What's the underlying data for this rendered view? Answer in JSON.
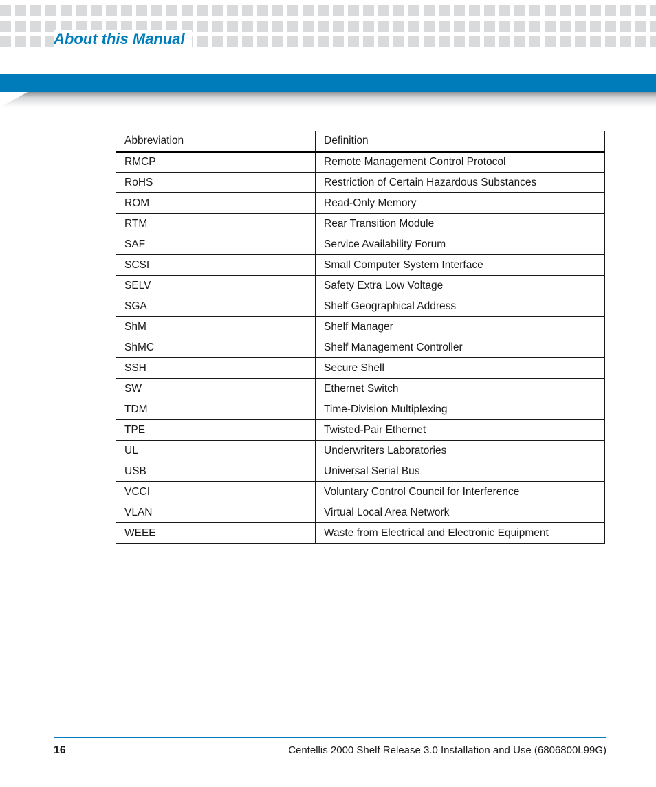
{
  "page": {
    "title": "About this Manual",
    "number": "16",
    "footer_text": "Centellis 2000 Shelf Release 3.0 Installation and Use (6806800L99G)"
  },
  "colors": {
    "accent": "#007cba",
    "pattern_square": "#d9dadb",
    "text": "#1a1a1a",
    "table_border": "#1a1a1a"
  },
  "abbr_table": {
    "columns": [
      "Abbreviation",
      "Definition"
    ],
    "rows": [
      [
        "RMCP",
        "Remote Management Control Protocol"
      ],
      [
        "RoHS",
        "Restriction of Certain Hazardous Substances"
      ],
      [
        "ROM",
        "Read-Only Memory"
      ],
      [
        "RTM",
        "Rear Transition Module"
      ],
      [
        "SAF",
        "Service Availability Forum"
      ],
      [
        "SCSI",
        "Small Computer System Interface"
      ],
      [
        "SELV",
        "Safety Extra Low Voltage"
      ],
      [
        "SGA",
        "Shelf Geographical Address"
      ],
      [
        "ShM",
        "Shelf Manager"
      ],
      [
        "ShMC",
        "Shelf Management Controller"
      ],
      [
        "SSH",
        "Secure Shell"
      ],
      [
        "SW",
        "Ethernet Switch"
      ],
      [
        "TDM",
        "Time-Division Multiplexing"
      ],
      [
        "TPE",
        "Twisted-Pair Ethernet"
      ],
      [
        "UL",
        "Underwriters Laboratories"
      ],
      [
        "USB",
        "Universal Serial Bus"
      ],
      [
        "VCCI",
        "Voluntary Control Council for Interference"
      ],
      [
        "VLAN",
        "Virtual Local Area Network"
      ],
      [
        "WEEE",
        "Waste from Electrical and Electronic Equipment"
      ]
    ]
  }
}
